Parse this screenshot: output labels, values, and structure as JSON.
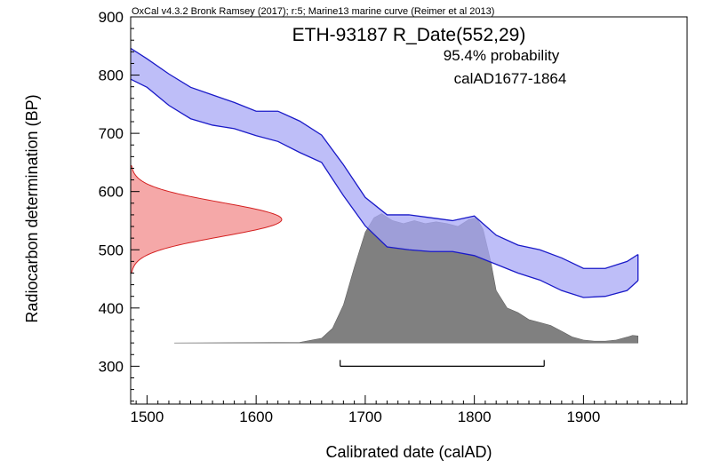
{
  "chart_data": {
    "type": "area",
    "header": "OxCal v4.3.2 Bronk Ramsey (2017); r:5; Marine13 marine curve (Reimer et al 2013)",
    "title": "ETH-93187 R_Date(552,29)",
    "probability_label": "95.4% probability",
    "range_label": "calAD1677-1864",
    "xlabel": "Calibrated date (calAD)",
    "ylabel": "Radiocarbon determination (BP)",
    "xlim": [
      1485,
      1995
    ],
    "ylim": [
      235,
      900
    ],
    "x_ticks": [
      1500,
      1600,
      1700,
      1800,
      1900
    ],
    "y_ticks": [
      300,
      400,
      500,
      600,
      700,
      800,
      900
    ],
    "colors": {
      "curve_fill": "#a8a8f5",
      "curve_line": "#1a1ac8",
      "measurement_fill": "#f5a8a8",
      "measurement_line": "#d42020",
      "posterior_fill": "#808080",
      "range_line": "#000000"
    },
    "measurement": {
      "mean": 552,
      "sigma": 29,
      "y_range": [
        460,
        645
      ]
    },
    "calibration_curve": {
      "x": [
        1485,
        1500,
        1520,
        1540,
        1560,
        1580,
        1600,
        1620,
        1640,
        1660,
        1680,
        1700,
        1720,
        1740,
        1760,
        1780,
        1800,
        1820,
        1840,
        1860,
        1880,
        1900,
        1920,
        1940,
        1950
      ],
      "upper": [
        846,
        828,
        802,
        779,
        766,
        753,
        738,
        738,
        721,
        697,
        646,
        590,
        560,
        560,
        555,
        550,
        558,
        525,
        508,
        500,
        486,
        468,
        468,
        480,
        492
      ],
      "lower": [
        793,
        779,
        748,
        725,
        714,
        708,
        696,
        686,
        667,
        650,
        593,
        541,
        505,
        500,
        497,
        497,
        490,
        475,
        460,
        448,
        430,
        418,
        420,
        430,
        447
      ]
    },
    "posterior": {
      "baseline": 340,
      "x": [
        1525,
        1640,
        1660,
        1670,
        1680,
        1690,
        1700,
        1708,
        1715,
        1725,
        1735,
        1745,
        1755,
        1765,
        1775,
        1785,
        1795,
        1802,
        1808,
        1815,
        1820,
        1830,
        1840,
        1850,
        1860,
        1870,
        1880,
        1890,
        1900,
        1910,
        1920,
        1930,
        1940,
        1945,
        1950
      ],
      "height": [
        340,
        341,
        348,
        365,
        405,
        470,
        530,
        555,
        562,
        550,
        545,
        550,
        545,
        548,
        545,
        540,
        552,
        555,
        535,
        480,
        430,
        400,
        392,
        380,
        375,
        370,
        360,
        350,
        345,
        343,
        343,
        345,
        350,
        353,
        352
      ]
    },
    "range_bar": {
      "from": 1677,
      "to": 1864,
      "y": 300
    }
  }
}
